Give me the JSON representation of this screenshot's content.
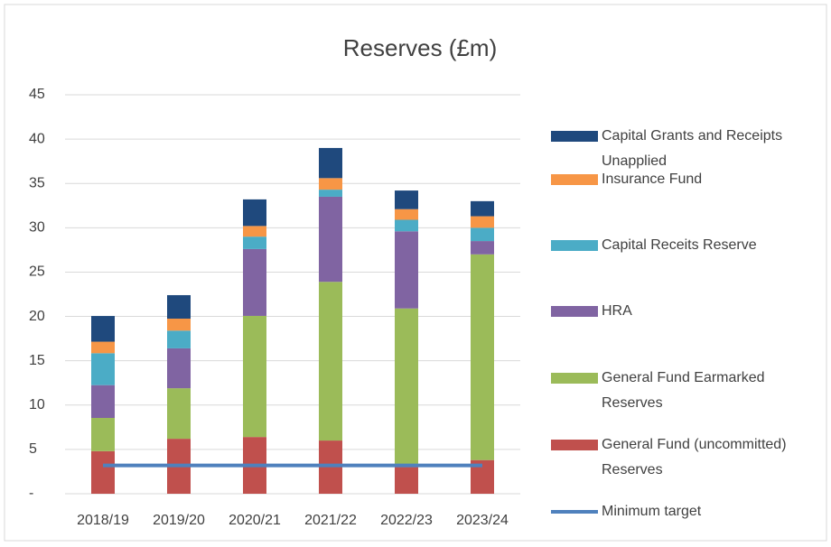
{
  "chart_data": {
    "type": "bar",
    "stacked": true,
    "title": "Reserves (£m)",
    "categories": [
      "2018/19",
      "2019/20",
      "2020/21",
      "2021/22",
      "2022/23",
      "2023/24"
    ],
    "series": [
      {
        "name": "General Fund (uncommitted) Reserves",
        "color": "#c0504d",
        "values": [
          4.8,
          6.2,
          6.4,
          6.0,
          3.0,
          3.8
        ]
      },
      {
        "name": "General Fund Earmarked Reserves",
        "color": "#9bbb59",
        "values": [
          3.75,
          5.7,
          13.66,
          17.9,
          17.9,
          23.2
        ]
      },
      {
        "name": "HRA",
        "color": "#8064a2",
        "values": [
          3.7,
          4.5,
          7.54,
          9.6,
          8.7,
          1.5
        ]
      },
      {
        "name": "Capital Receits Reserve",
        "color": "#4bacc6",
        "values": [
          3.6,
          2.0,
          1.4,
          0.8,
          1.3,
          1.5
        ]
      },
      {
        "name": "Insurance Fund",
        "color": "#f79646",
        "values": [
          1.3,
          1.35,
          1.2,
          1.3,
          1.2,
          1.3
        ]
      },
      {
        "name": "Capital Grants and Receipts Unapplied",
        "color": "#1f497d",
        "values": [
          2.9,
          2.65,
          3.0,
          3.4,
          2.1,
          1.7
        ]
      },
      {
        "name": "Minimum target",
        "color": "#4f81bd",
        "type": "line",
        "values": [
          3.2,
          3.2,
          3.2,
          3.2,
          3.2,
          3.2
        ]
      }
    ],
    "ylim": [
      0,
      45
    ],
    "yticks": [
      {
        "value": 0,
        "label": "-"
      },
      5,
      10,
      15,
      20,
      25,
      30,
      35,
      40,
      45
    ],
    "grid": true
  }
}
